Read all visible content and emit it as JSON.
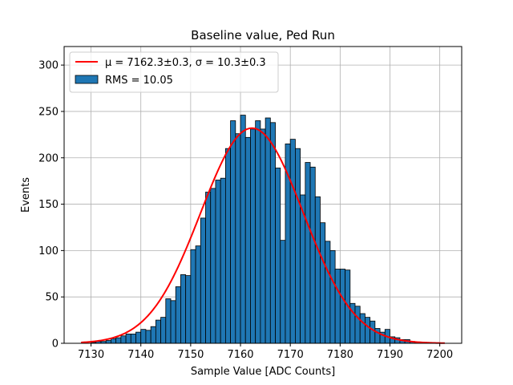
{
  "chart_data": {
    "type": "bar",
    "title": "Baseline value, Ped Run",
    "xlabel": "Sample Value [ADC Counts]",
    "ylabel": "Events",
    "xlim": [
      7124.6,
      7204.4
    ],
    "ylim": [
      0,
      320
    ],
    "x_ticks": [
      7130,
      7140,
      7150,
      7160,
      7170,
      7180,
      7190,
      7200
    ],
    "y_ticks": [
      0,
      50,
      100,
      150,
      200,
      250,
      300
    ],
    "grid": true,
    "legend_position": "top-left",
    "bin_start": 7128,
    "bin_width": 1,
    "histogram_values": [
      0,
      0,
      1,
      2,
      2,
      3,
      5,
      6,
      8,
      10,
      10,
      12,
      15,
      14,
      18,
      25,
      28,
      48,
      46,
      61,
      74,
      73,
      101,
      105,
      135,
      163,
      167,
      176,
      178,
      210,
      240,
      226,
      246,
      222,
      231,
      240,
      231,
      243,
      238,
      189,
      111,
      215,
      220,
      210,
      160,
      195,
      190,
      158,
      130,
      110,
      100,
      80,
      80,
      79,
      43,
      40,
      32,
      28,
      24,
      16,
      12,
      15,
      7,
      6,
      4,
      4,
      2,
      1,
      0,
      0,
      0,
      0,
      0
    ],
    "fit": {
      "label": "μ = 7162.3±0.3, σ = 10.3±0.3",
      "label_plain": "μ = 7162.3±0.3, σ = 10.3±0.3",
      "mu": 7162.3,
      "sigma": 10.3,
      "amplitude": 232,
      "x_range": [
        7128,
        7201
      ],
      "color": "#ff0000"
    },
    "histogram_series": {
      "label": "RMS = 10.05",
      "color": "#1f77b4"
    }
  }
}
